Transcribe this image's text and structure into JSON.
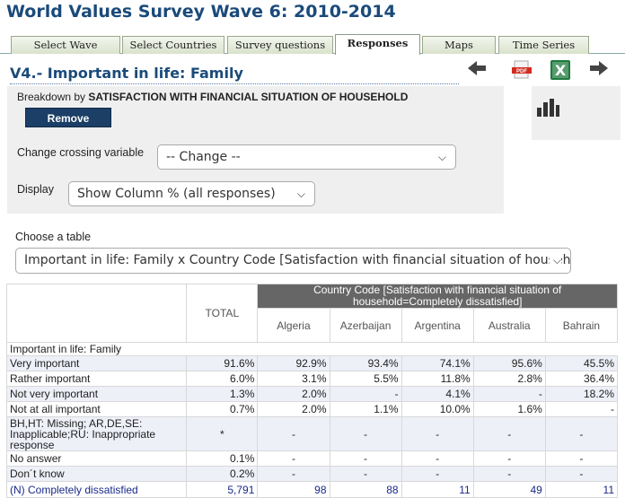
{
  "app_title": "World Values Survey Wave 6: 2010-2014",
  "tabs": [
    {
      "label": "Select Wave"
    },
    {
      "label": "Select Countries"
    },
    {
      "label": "Survey questions"
    },
    {
      "label": "Responses"
    },
    {
      "label": "Maps"
    },
    {
      "label": "Time Series"
    }
  ],
  "active_tab": "Responses",
  "section_title": "V4.- Important in life: Family",
  "icons": [
    "arrow-left-icon",
    "pdf-icon",
    "excel-icon",
    "arrow-right-icon",
    "bar-chart-icon"
  ],
  "breakdown": {
    "prefix": "Breakdown by",
    "variable": "SATISFACTION WITH FINANCIAL SITUATION OF HOUSEHOLD",
    "remove_label": "Remove"
  },
  "crossing": {
    "label": "Change crossing variable",
    "value": "-- Change --"
  },
  "display": {
    "label": "Display",
    "value": "Show Column % (all responses)"
  },
  "choose_table": {
    "label": "Choose a table",
    "value": "Important in life: Family x Country Code [Satisfaction with financial situation of househ"
  },
  "table": {
    "total_header": "TOTAL",
    "group_header": "Country Code [Satisfaction with financial situation of household=Completely dissatisfied]",
    "countries": [
      "Algeria",
      "Azerbaijan",
      "Argentina",
      "Australia",
      "Bahrain"
    ],
    "section_label": "Important in life: Family",
    "rows": [
      {
        "label": "Very important",
        "total": "91.6%",
        "values": [
          "92.9%",
          "93.4%",
          "74.1%",
          "95.6%",
          "45.5%"
        ]
      },
      {
        "label": "Rather important",
        "total": "6.0%",
        "values": [
          "3.1%",
          "5.5%",
          "11.8%",
          "2.8%",
          "36.4%"
        ]
      },
      {
        "label": "Not very important",
        "total": "1.3%",
        "values": [
          "2.0%",
          "-",
          "4.1%",
          "-",
          "18.2%"
        ]
      },
      {
        "label": "Not at all important",
        "total": "0.7%",
        "values": [
          "2.0%",
          "1.1%",
          "10.0%",
          "1.6%",
          "-"
        ]
      },
      {
        "label": "BH,HT: Missing; AR,DE,SE: Inapplicable;RU: Inappropriate response",
        "total": "*",
        "values": [
          "-",
          "-",
          "-",
          "-",
          "-"
        ]
      },
      {
        "label": "No answer",
        "total": "0.1%",
        "values": [
          "-",
          "-",
          "-",
          "-",
          "-"
        ]
      },
      {
        "label": "Don´t know",
        "total": "0.2%",
        "values": [
          "-",
          "-",
          "-",
          "-",
          "-"
        ]
      },
      {
        "label": "(N) Completely dissatisfied",
        "total": "5,791",
        "values": [
          "98",
          "88",
          "11",
          "49",
          "11"
        ]
      }
    ]
  },
  "colors": {
    "title": "#1a4a7a",
    "remove_button": "#1b3f66",
    "header_bg": "#666666",
    "alt_row": "#eef0f8"
  }
}
